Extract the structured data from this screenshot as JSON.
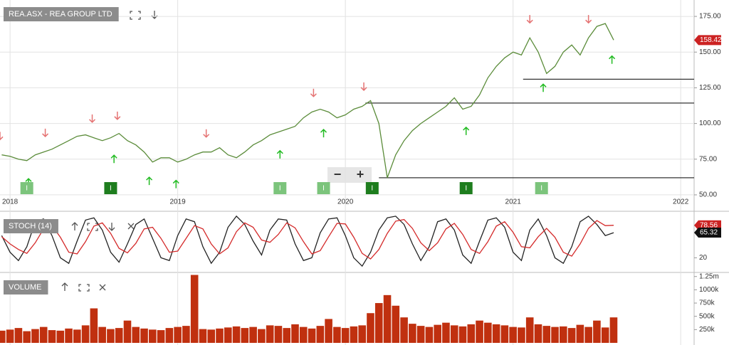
{
  "controls": [
    "−",
    "+"
  ],
  "chart_data": [
    {
      "type": "line",
      "title": "REA.ASX - REA GROUP LTD",
      "x": [
        2017.95,
        2018.0,
        2018.05,
        2018.1,
        2018.15,
        2018.2,
        2018.25,
        2018.3,
        2018.35,
        2018.4,
        2018.45,
        2018.5,
        2018.55,
        2018.6,
        2018.65,
        2018.7,
        2018.75,
        2018.8,
        2018.85,
        2018.9,
        2018.95,
        2019.0,
        2019.05,
        2019.1,
        2019.15,
        2019.2,
        2019.25,
        2019.3,
        2019.35,
        2019.4,
        2019.45,
        2019.5,
        2019.55,
        2019.6,
        2019.65,
        2019.7,
        2019.75,
        2019.8,
        2019.85,
        2019.9,
        2019.95,
        2020.0,
        2020.05,
        2020.1,
        2020.15,
        2020.2,
        2020.25,
        2020.3,
        2020.35,
        2020.4,
        2020.45,
        2020.5,
        2020.55,
        2020.6,
        2020.65,
        2020.7,
        2020.75,
        2020.8,
        2020.85,
        2020.9,
        2020.95,
        2021.0,
        2021.05,
        2021.1,
        2021.15,
        2021.2,
        2021.25,
        2021.3,
        2021.35,
        2021.4,
        2021.45,
        2021.5,
        2021.55,
        2021.6
      ],
      "series": [
        {
          "color": "#5b8c3a",
          "values": [
            78,
            77,
            75,
            74,
            78,
            80,
            82,
            85,
            88,
            91,
            92,
            90,
            88,
            90,
            93,
            88,
            85,
            80,
            73,
            76,
            76,
            73,
            75,
            78,
            80,
            80,
            83,
            78,
            76,
            80,
            85,
            88,
            92,
            94,
            96,
            98,
            104,
            108,
            110,
            108,
            104,
            106,
            110,
            112,
            116,
            100,
            62,
            78,
            88,
            95,
            100,
            104,
            108,
            112,
            118,
            110,
            112,
            120,
            132,
            140,
            146,
            150,
            148,
            160,
            150,
            135,
            140,
            150,
            155,
            148,
            160,
            168,
            170,
            158.42
          ]
        }
      ],
      "xlim": [
        2017.94,
        2022.08
      ],
      "xticks": [
        2018,
        2019,
        2020,
        2021,
        2022
      ],
      "ylim": [
        40.5,
        184
      ],
      "yticks": [
        {
          "value": 50,
          "label": "50.00"
        },
        {
          "value": 75,
          "label": "75.00"
        },
        {
          "value": 100,
          "label": "100.00"
        },
        {
          "value": 125,
          "label": "125.00"
        },
        {
          "value": 150,
          "label": "150.00"
        },
        {
          "value": 175,
          "label": "175.00"
        }
      ],
      "grid": true,
      "levels": [
        {
          "value": 131,
          "x": 2021.06
        },
        {
          "value": 114.3,
          "x": 2020.12
        },
        {
          "value": 62,
          "x": 2020.2
        }
      ],
      "sell_signals": [
        2017.94,
        2018.21,
        2018.49,
        2018.64,
        2019.17,
        2019.81,
        2020.11,
        2021.1,
        2021.45
      ],
      "buy_signals": [
        2018.11,
        2018.62,
        2018.83,
        2018.99,
        2019.61,
        2019.87,
        2020.72,
        2021.18,
        2021.59
      ],
      "events": [
        {
          "x": 2018.1,
          "label": "I",
          "color": "#7cc47c"
        },
        {
          "x": 2018.6,
          "label": "I",
          "color": "#1e7d1e"
        },
        {
          "x": 2019.61,
          "label": "I",
          "color": "#7cc47c"
        },
        {
          "x": 2019.87,
          "label": "I",
          "color": "#7cc47c"
        },
        {
          "x": 2020.16,
          "label": "I",
          "color": "#1e7d1e"
        },
        {
          "x": 2020.72,
          "label": "I",
          "color": "#1e7d1e"
        },
        {
          "x": 2021.17,
          "label": "I",
          "color": "#7cc47c"
        }
      ]
    },
    {
      "type": "line",
      "title": "STOCH (14)",
      "x": [
        2017.95,
        2018.0,
        2018.05,
        2018.1,
        2018.15,
        2018.2,
        2018.25,
        2018.3,
        2018.35,
        2018.4,
        2018.45,
        2018.5,
        2018.55,
        2018.6,
        2018.65,
        2018.7,
        2018.75,
        2018.8,
        2018.85,
        2018.9,
        2018.95,
        2019.0,
        2019.05,
        2019.1,
        2019.15,
        2019.2,
        2019.25,
        2019.3,
        2019.35,
        2019.4,
        2019.45,
        2019.5,
        2019.55,
        2019.6,
        2019.65,
        2019.7,
        2019.75,
        2019.8,
        2019.85,
        2019.9,
        2019.95,
        2020.0,
        2020.05,
        2020.1,
        2020.15,
        2020.2,
        2020.25,
        2020.3,
        2020.35,
        2020.4,
        2020.45,
        2020.5,
        2020.55,
        2020.6,
        2020.65,
        2020.7,
        2020.75,
        2020.8,
        2020.85,
        2020.9,
        2020.95,
        2021.0,
        2021.05,
        2021.1,
        2021.15,
        2021.2,
        2021.25,
        2021.3,
        2021.35,
        2021.4,
        2021.45,
        2021.5,
        2021.55,
        2021.6
      ],
      "series": [
        {
          "color": "#222222",
          "values": [
            60,
            30,
            15,
            40,
            85,
            90,
            60,
            20,
            10,
            50,
            88,
            92,
            70,
            30,
            12,
            45,
            80,
            90,
            55,
            20,
            15,
            60,
            90,
            85,
            40,
            10,
            30,
            75,
            95,
            80,
            50,
            25,
            70,
            90,
            88,
            45,
            15,
            20,
            65,
            90,
            92,
            60,
            20,
            5,
            30,
            70,
            92,
            95,
            80,
            45,
            15,
            40,
            85,
            90,
            70,
            25,
            10,
            50,
            88,
            92,
            75,
            30,
            15,
            70,
            90,
            60,
            20,
            10,
            40,
            85,
            95,
            80,
            60,
            65.32
          ]
        },
        {
          "color": "#d42a2a",
          "values": [
            58,
            45,
            35,
            28,
            47,
            72,
            78,
            57,
            30,
            27,
            49,
            77,
            83,
            64,
            37,
            29,
            46,
            72,
            75,
            55,
            30,
            32,
            55,
            78,
            72,
            45,
            27,
            38,
            67,
            83,
            75,
            52,
            48,
            62,
            83,
            74,
            49,
            27,
            33,
            58,
            82,
            81,
            57,
            28,
            18,
            35,
            64,
            86,
            89,
            73,
            47,
            33,
            47,
            72,
            82,
            62,
            35,
            28,
            49,
            77,
            85,
            66,
            40,
            38,
            58,
            73,
            57,
            30,
            23,
            45,
            73,
            87,
            78,
            78.56
          ]
        }
      ],
      "xlim": [
        2017.94,
        2022.08
      ],
      "ylim": [
        0,
        100
      ],
      "yticks": [
        20
      ]
    },
    {
      "type": "bar",
      "title": "VOLUME",
      "color": "#c0300f",
      "x": [
        2017.95,
        2018.0,
        2018.05,
        2018.1,
        2018.15,
        2018.2,
        2018.25,
        2018.3,
        2018.35,
        2018.4,
        2018.45,
        2018.5,
        2018.55,
        2018.6,
        2018.65,
        2018.7,
        2018.75,
        2018.8,
        2018.85,
        2018.9,
        2018.95,
        2019.0,
        2019.05,
        2019.1,
        2019.15,
        2019.2,
        2019.25,
        2019.3,
        2019.35,
        2019.4,
        2019.45,
        2019.5,
        2019.55,
        2019.6,
        2019.65,
        2019.7,
        2019.75,
        2019.8,
        2019.85,
        2019.9,
        2019.95,
        2020.0,
        2020.05,
        2020.1,
        2020.15,
        2020.2,
        2020.25,
        2020.3,
        2020.35,
        2020.4,
        2020.45,
        2020.5,
        2020.55,
        2020.6,
        2020.65,
        2020.7,
        2020.75,
        2020.8,
        2020.85,
        2020.9,
        2020.95,
        2021.0,
        2021.05,
        2021.1,
        2021.15,
        2021.2,
        2021.25,
        2021.3,
        2021.35,
        2021.4,
        2021.45,
        2021.5,
        2021.55,
        2021.6
      ],
      "values": [
        230000,
        250000,
        280000,
        220000,
        260000,
        300000,
        240000,
        230000,
        270000,
        250000,
        330000,
        650000,
        300000,
        260000,
        280000,
        420000,
        300000,
        270000,
        250000,
        240000,
        280000,
        300000,
        320000,
        1280000,
        260000,
        250000,
        270000,
        290000,
        310000,
        280000,
        300000,
        260000,
        330000,
        320000,
        280000,
        350000,
        300000,
        270000,
        320000,
        450000,
        300000,
        280000,
        310000,
        330000,
        560000,
        750000,
        900000,
        700000,
        480000,
        360000,
        320000,
        300000,
        340000,
        380000,
        330000,
        310000,
        350000,
        420000,
        380000,
        350000,
        330000,
        300000,
        290000,
        480000,
        350000,
        320000,
        300000,
        310000,
        280000,
        340000,
        300000,
        420000,
        290000,
        480000
      ],
      "xlim": [
        2017.94,
        2022.08
      ],
      "ylim": [
        0,
        1300000
      ],
      "yticks": [
        {
          "value": 250000,
          "label": "250k"
        },
        {
          "value": 500000,
          "label": "500k"
        },
        {
          "value": 750000,
          "label": "750k"
        },
        {
          "value": 1000000,
          "label": "1000k"
        },
        {
          "value": 1250000,
          "label": "1.25m"
        }
      ]
    }
  ]
}
